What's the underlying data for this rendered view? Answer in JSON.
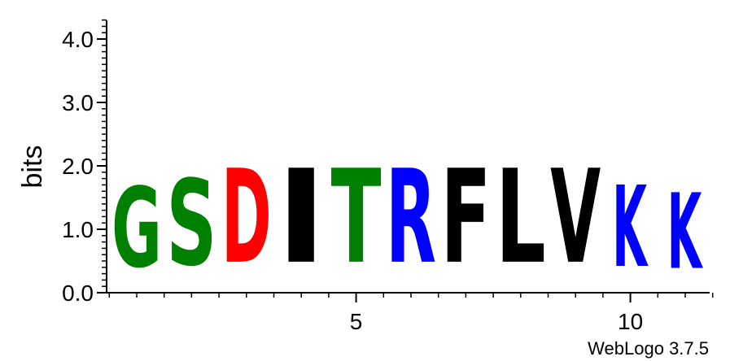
{
  "chart_data": {
    "type": "sequence-logo",
    "ylabel": "bits",
    "ylim": [
      0,
      4.32
    ],
    "y_ticks": [
      "0.0",
      "1.0",
      "2.0",
      "3.0",
      "4.0"
    ],
    "x_ticks": [
      {
        "position": 5,
        "label": "5"
      },
      {
        "position": 10,
        "label": "10"
      }
    ],
    "positions": [
      {
        "pos": 1,
        "letter": "G",
        "bits": 2.03,
        "color": "#008000"
      },
      {
        "pos": 2,
        "letter": "S",
        "bits": 2.18,
        "color": "#008000"
      },
      {
        "pos": 3,
        "letter": "D",
        "bits": 2.38,
        "color": "#ff0000"
      },
      {
        "pos": 4,
        "letter": "I",
        "bits": 2.38,
        "color": "#000000"
      },
      {
        "pos": 5,
        "letter": "T",
        "bits": 2.38,
        "color": "#008000"
      },
      {
        "pos": 6,
        "letter": "R",
        "bits": 2.38,
        "color": "#0000ff"
      },
      {
        "pos": 7,
        "letter": "F",
        "bits": 2.38,
        "color": "#000000"
      },
      {
        "pos": 8,
        "letter": "L",
        "bits": 2.38,
        "color": "#000000"
      },
      {
        "pos": 9,
        "letter": "V",
        "bits": 2.38,
        "color": "#000000"
      },
      {
        "pos": 10,
        "letter": "K",
        "bits": 2.06,
        "color": "#0000ff"
      },
      {
        "pos": 11,
        "letter": "K",
        "bits": 1.92,
        "color": "#0000ff"
      }
    ]
  },
  "footer": {
    "credit": "WebLogo 3.7.5"
  }
}
